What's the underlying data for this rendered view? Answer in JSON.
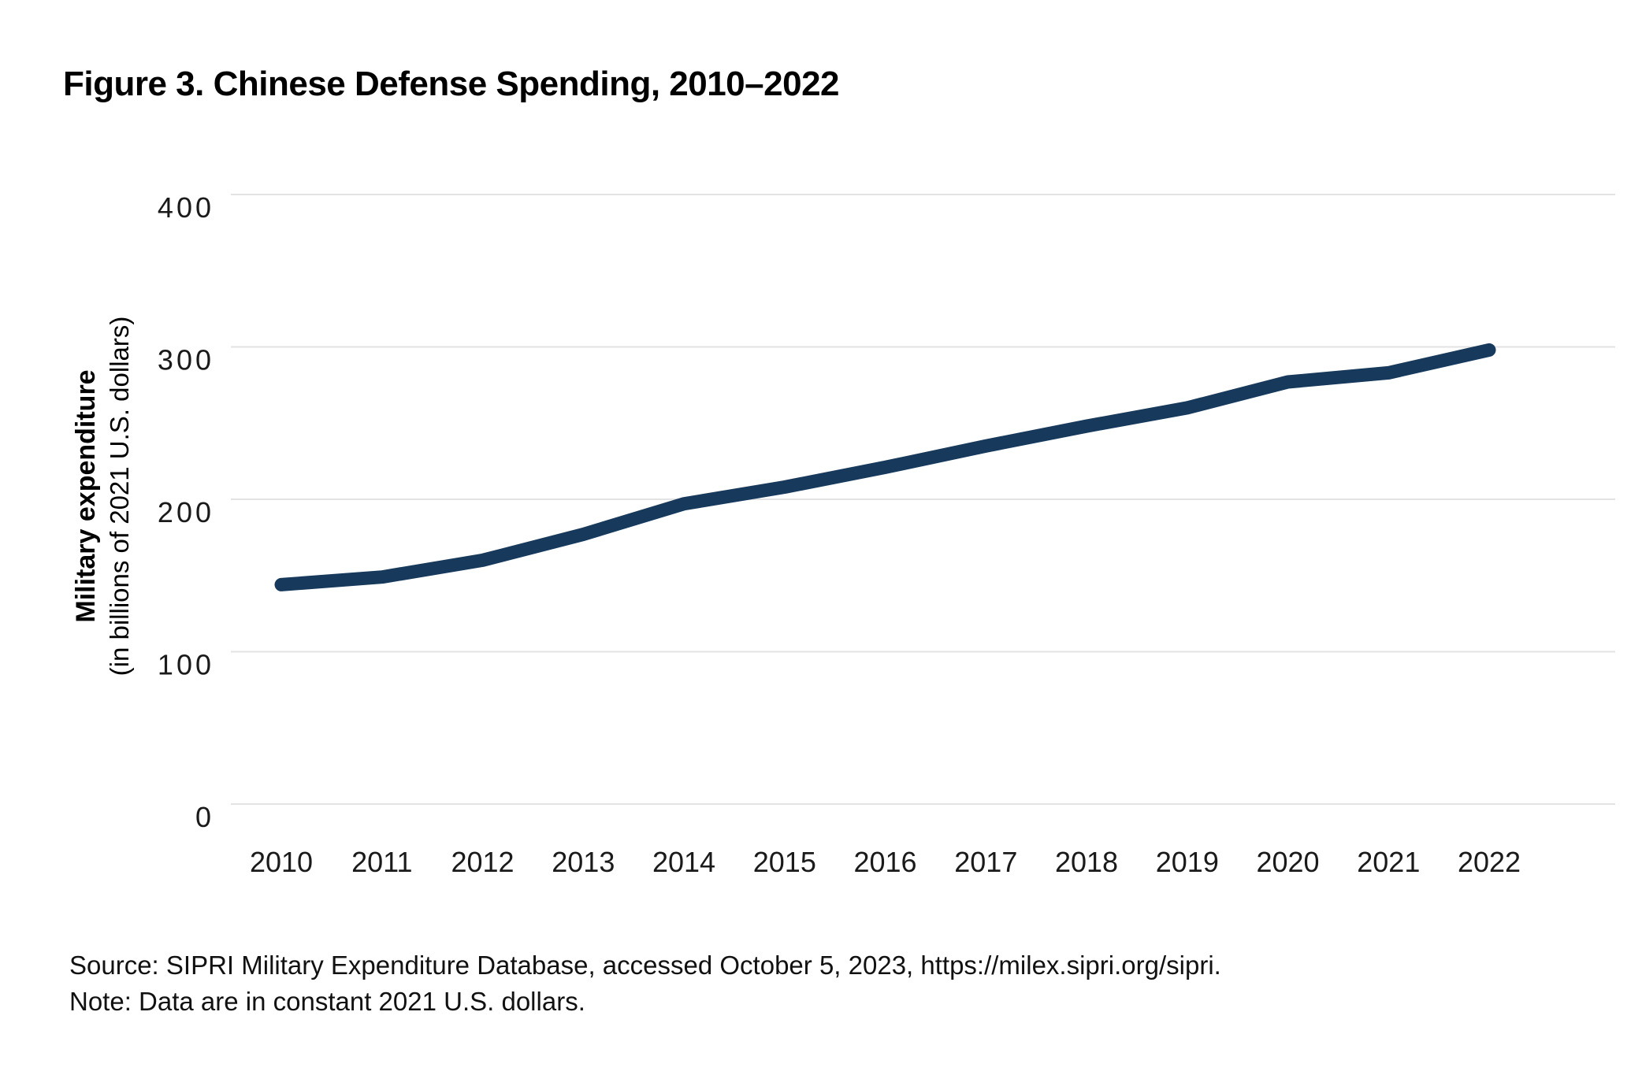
{
  "figure": {
    "title": "Figure 3. Chinese Defense Spending, 2010–2022",
    "source_line": "Source: SIPRI Military Expenditure Database, accessed October 5, 2023, https://milex.sipri.org/sipri.",
    "note_line": "Note: Data are in constant 2021 U.S. dollars."
  },
  "chart_data": {
    "type": "line",
    "title": "Figure 3. Chinese Defense Spending, 2010–2022",
    "categories": [
      2010,
      2011,
      2012,
      2013,
      2014,
      2015,
      2016,
      2017,
      2018,
      2019,
      2020,
      2021,
      2022
    ],
    "series": [
      {
        "name": "Chinese military expenditure",
        "values": [
          144,
          149,
          160,
          177,
          197,
          208,
          221,
          235,
          248,
          260,
          277,
          283,
          298
        ]
      }
    ],
    "xlabel": "",
    "ylabel": "Military expenditure",
    "ylabel_sub": "(in billions of 2021 U.S. dollars)",
    "ylim": [
      0,
      400
    ],
    "yticks": [
      0,
      100,
      200,
      300,
      400
    ],
    "grid": "horizontal-only",
    "legend": "none",
    "line_color": "#16395C",
    "gridline_color": "#E3E3E3",
    "tick_label_color": "#1A1A1A"
  }
}
